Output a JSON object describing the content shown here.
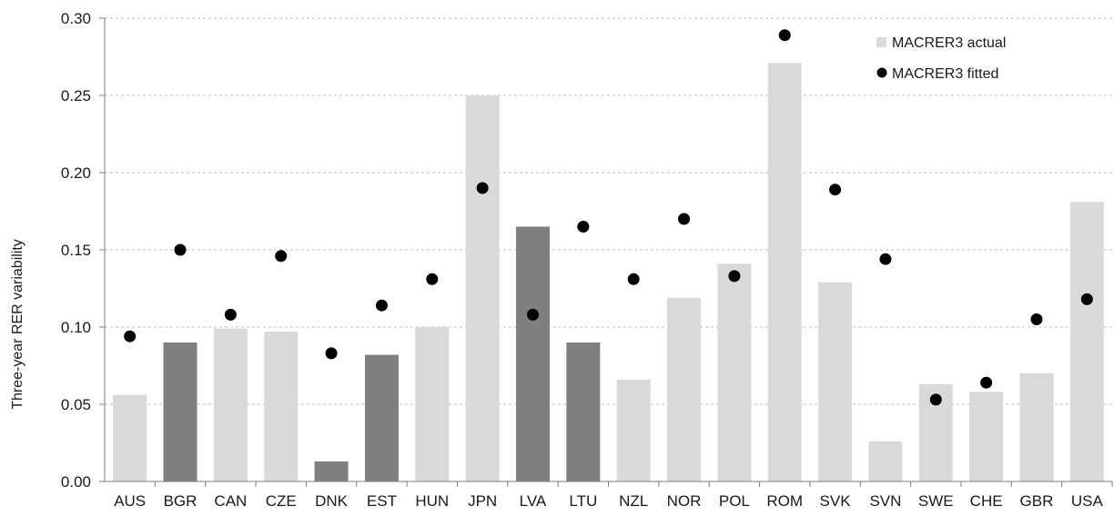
{
  "chart_data": {
    "type": "bar",
    "ylabel": "Three-year RER variability",
    "xlabel": "",
    "title": "",
    "ylim": [
      0,
      0.3
    ],
    "y_ticks": [
      "0.00",
      "0.05",
      "0.10",
      "0.15",
      "0.20",
      "0.25",
      "0.30"
    ],
    "grid": "horizontal dashed",
    "legend_position": "top-right",
    "categories": [
      "AUS",
      "BGR",
      "CAN",
      "CZE",
      "DNK",
      "EST",
      "HUN",
      "JPN",
      "LVA",
      "LTU",
      "NZL",
      "NOR",
      "POL",
      "ROM",
      "SVK",
      "SVN",
      "SWE",
      "CHE",
      "GBR",
      "USA"
    ],
    "series": [
      {
        "name": "MACRER3 actual",
        "kind": "bar",
        "values": [
          0.056,
          0.09,
          0.099,
          0.097,
          0.013,
          0.082,
          0.1,
          0.25,
          0.165,
          0.09,
          0.066,
          0.119,
          0.141,
          0.271,
          0.129,
          0.026,
          0.063,
          0.058,
          0.07,
          0.181
        ]
      },
      {
        "name": "MACRER3 fitted",
        "kind": "marker",
        "values": [
          0.094,
          0.15,
          0.108,
          0.146,
          0.083,
          0.114,
          0.131,
          0.19,
          0.108,
          0.165,
          0.131,
          0.17,
          0.133,
          0.289,
          0.189,
          0.144,
          0.053,
          0.064,
          0.105,
          0.118
        ]
      }
    ],
    "highlighted_categories": [
      "BGR",
      "DNK",
      "EST",
      "LVA",
      "LTU"
    ],
    "colors": {
      "bar": "#d9d9d9",
      "bar_highlight": "#7f7f7f",
      "marker": "#000000",
      "grid": "#bfbfbf",
      "axis": "#7f7f7f"
    }
  }
}
